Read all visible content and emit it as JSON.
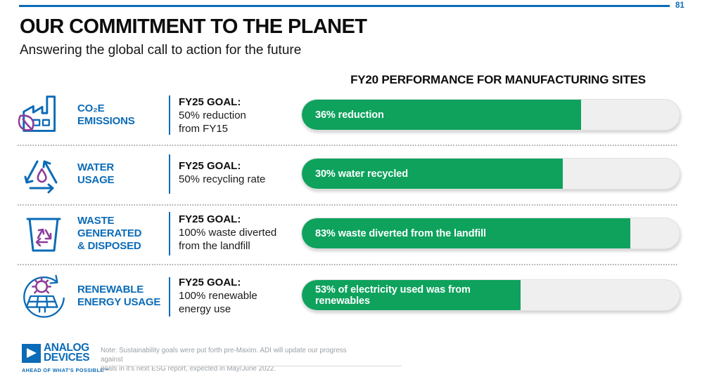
{
  "page_number": "81",
  "header": {
    "title": "OUR COMMITMENT TO THE PLANET",
    "subtitle": "Answering the global call to action for the future"
  },
  "performance_heading": "FY20 PERFORMANCE FOR MANUFACTURING SITES",
  "rows": [
    {
      "icon": "factory-leaf-icon",
      "category_lines": [
        "CO₂E",
        "EMISSIONS"
      ],
      "goal_label": "FY25 GOAL:",
      "goal_lines": [
        "50% reduction",
        "from FY15"
      ],
      "bar_label": "36% reduction",
      "value_percent": 36,
      "goal_percent": 50,
      "fill_percent": 74
    },
    {
      "icon": "water-recycle-icon",
      "category_lines": [
        "WATER",
        "USAGE"
      ],
      "goal_label": "FY25 GOAL:",
      "goal_lines": [
        "50% recycling rate"
      ],
      "bar_label": "30% water recycled",
      "value_percent": 30,
      "goal_percent": 50,
      "fill_percent": 69
    },
    {
      "icon": "waste-bin-recycle-icon",
      "category_lines": [
        "WASTE",
        "GENERATED",
        "& DISPOSED"
      ],
      "goal_label": "FY25 GOAL:",
      "goal_lines": [
        "100% waste diverted",
        "from the landfill"
      ],
      "bar_label": "83% waste diverted from the landfill",
      "value_percent": 83,
      "goal_percent": 100,
      "fill_percent": 87
    },
    {
      "icon": "renewable-energy-icon",
      "category_lines": [
        "RENEWABLE",
        "ENERGY USAGE"
      ],
      "goal_label": "FY25 GOAL:",
      "goal_lines": [
        "100% renewable",
        "energy use"
      ],
      "bar_label": "53% of electricity used was from renewables",
      "value_percent": 53,
      "goal_percent": 100,
      "fill_percent": 58
    }
  ],
  "chart_data": {
    "type": "bar",
    "orientation": "horizontal",
    "title": "FY20 PERFORMANCE FOR MANUFACTURING SITES",
    "categories": [
      "CO2E Emissions",
      "Water Usage",
      "Waste Generated & Disposed",
      "Renewable Energy Usage"
    ],
    "values": [
      36,
      30,
      83,
      53
    ],
    "bar_labels": [
      "36% reduction",
      "30% water recycled",
      "83% waste diverted from the landfill",
      "53% of electricity used was from renewables"
    ],
    "goals": [
      "FY25 GOAL: 50% reduction from FY15",
      "FY25 GOAL: 50% recycling rate",
      "FY25 GOAL: 100% waste diverted from the landfill",
      "FY25 GOAL: 100% renewable energy use"
    ],
    "bar_fill_percent_of_track": [
      74,
      69,
      87,
      58
    ],
    "xlim": [
      0,
      100
    ],
    "legend": "none",
    "grid": false
  },
  "footer": {
    "logo_line1": "ANALOG",
    "logo_line2": "DEVICES",
    "tagline": "AHEAD OF WHAT'S POSSIBLE™",
    "note_line1": "Note: Sustainability goals were put forth pre-Maxim.  ADI will update our progress against",
    "note_line2": "goals in it's next ESG report, expected in May/June 2022."
  },
  "colors": {
    "brand_blue": "#0b6bb7",
    "bar_green": "#0ea25d",
    "track_gray": "#efefef",
    "accent_purple": "#8e3d9a",
    "note_gray": "#9aa0a6"
  }
}
